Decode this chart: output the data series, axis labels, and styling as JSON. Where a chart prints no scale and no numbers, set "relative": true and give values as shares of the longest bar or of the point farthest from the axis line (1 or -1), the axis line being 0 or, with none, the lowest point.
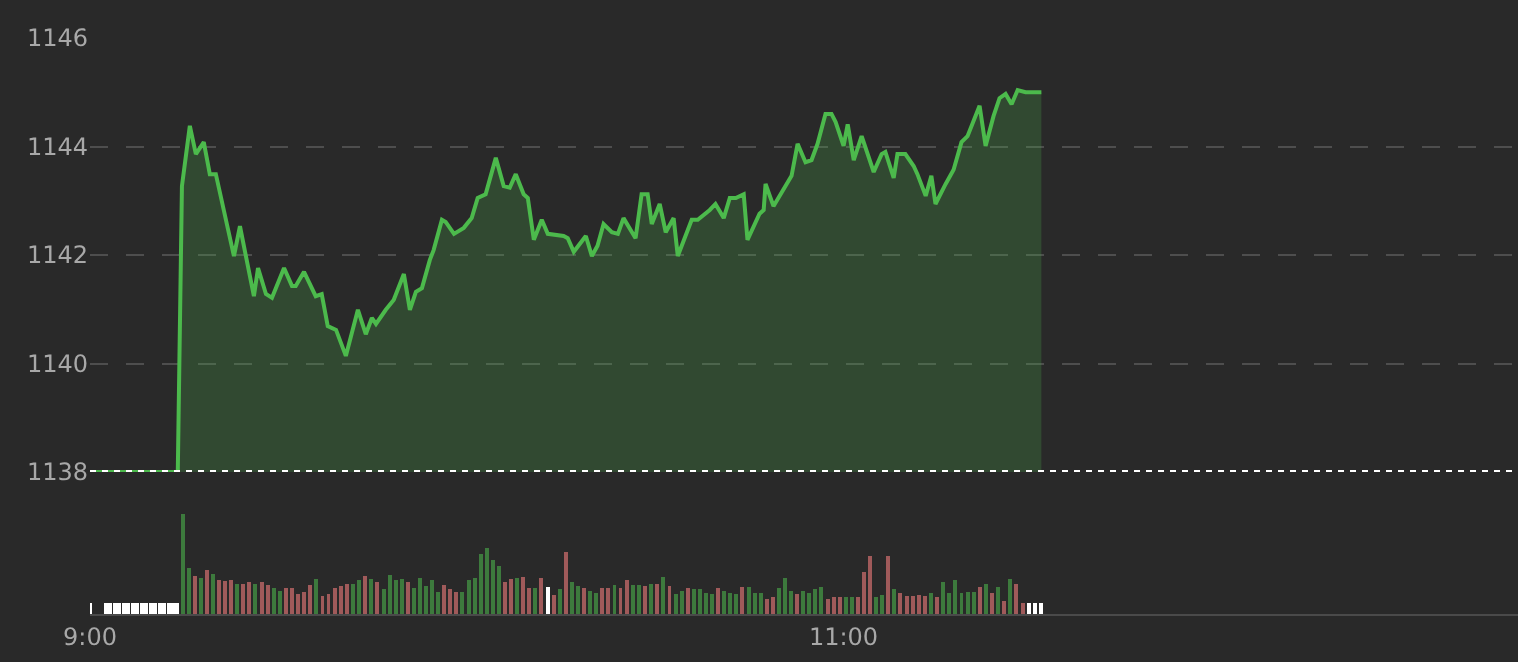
{
  "chart_data": [
    {
      "type": "area",
      "color": "#4cba4c",
      "xlim": [
        9.0,
        12.79
      ],
      "ylim": [
        1138,
        1146
      ],
      "yticks": [
        1138,
        1140,
        1142,
        1144,
        1146
      ],
      "grid": "y",
      "tick_labels": "y",
      "ref_lines": [
        {
          "axis": "y",
          "value": 1138,
          "color": "#ffffff",
          "line_style": "dotted"
        }
      ],
      "x": [
        9.0,
        9.233,
        9.244,
        9.265,
        9.281,
        9.302,
        9.318,
        9.334,
        9.382,
        9.398,
        9.435,
        9.446,
        9.467,
        9.483,
        9.515,
        9.536,
        9.546,
        9.568,
        9.599,
        9.615,
        9.631,
        9.653,
        9.679,
        9.711,
        9.732,
        9.748,
        9.759,
        9.785,
        9.806,
        9.833,
        9.849,
        9.865,
        9.881,
        9.902,
        9.912,
        9.934,
        9.944,
        9.966,
        9.992,
        10.013,
        10.029,
        10.05,
        10.077,
        10.098,
        10.114,
        10.13,
        10.151,
        10.162,
        10.178,
        10.199,
        10.215,
        10.257,
        10.268,
        10.284,
        10.316,
        10.332,
        10.347,
        10.363,
        10.385,
        10.401,
        10.416,
        10.448,
        10.464,
        10.48,
        10.491,
        10.512,
        10.528,
        10.549,
        10.56,
        10.597,
        10.613,
        10.645,
        10.66,
        10.682,
        10.698,
        10.714,
        10.735,
        10.745,
        10.777,
        10.788,
        10.793,
        10.814,
        10.862,
        10.878,
        10.899,
        10.915,
        10.931,
        10.952,
        10.968,
        10.979,
        11.0,
        11.011,
        11.027,
        11.048,
        11.08,
        11.101,
        11.111,
        11.133,
        11.143,
        11.164,
        11.186,
        11.196,
        11.218,
        11.233,
        11.244,
        11.271,
        11.292,
        11.313,
        11.329,
        11.361,
        11.377,
        11.398,
        11.414,
        11.43,
        11.446,
        11.462,
        11.483,
        11.525
      ],
      "values": [
        1138.0,
        1138.0,
        1143.27,
        1144.38,
        1143.86,
        1144.08,
        1143.49,
        1143.49,
        1141.98,
        1142.53,
        1141.24,
        1141.76,
        1141.28,
        1141.21,
        1141.76,
        1141.43,
        1141.43,
        1141.69,
        1141.24,
        1141.28,
        1140.69,
        1140.62,
        1140.14,
        1140.99,
        1140.54,
        1140.84,
        1140.73,
        1140.99,
        1141.17,
        1141.65,
        1140.99,
        1141.32,
        1141.39,
        1141.91,
        1142.09,
        1142.65,
        1142.61,
        1142.39,
        1142.5,
        1142.68,
        1143.05,
        1143.12,
        1143.79,
        1143.27,
        1143.24,
        1143.49,
        1143.12,
        1143.05,
        1142.28,
        1142.65,
        1142.39,
        1142.35,
        1142.31,
        1142.06,
        1142.35,
        1141.98,
        1142.17,
        1142.57,
        1142.42,
        1142.39,
        1142.68,
        1142.31,
        1143.12,
        1143.12,
        1142.57,
        1142.94,
        1142.42,
        1142.68,
        1141.98,
        1142.65,
        1142.65,
        1142.83,
        1142.94,
        1142.68,
        1143.05,
        1143.05,
        1143.12,
        1142.28,
        1142.76,
        1142.83,
        1143.31,
        1142.9,
        1143.46,
        1144.05,
        1143.71,
        1143.75,
        1144.05,
        1144.6,
        1144.6,
        1144.45,
        1144.01,
        1144.41,
        1143.75,
        1144.19,
        1143.53,
        1143.86,
        1143.9,
        1143.42,
        1143.86,
        1143.86,
        1143.64,
        1143.49,
        1143.09,
        1143.46,
        1142.94,
        1143.31,
        1143.57,
        1144.08,
        1144.19,
        1144.75,
        1144.01,
        1144.56,
        1144.89,
        1144.97,
        1144.78,
        1145.04,
        1145.0,
        1145.0
      ]
    },
    {
      "type": "bar",
      "relative": true,
      "xlim": [
        9.0,
        12.79
      ],
      "xticks": [
        {
          "value": 9,
          "label": "9:00"
        },
        {
          "value": 11,
          "label": "11:00"
        }
      ],
      "tick_labels": "x",
      "x": [
        9.0,
        9.042,
        9.054,
        9.066,
        9.078,
        9.09,
        9.102,
        9.114,
        9.125,
        9.137,
        9.149,
        9.161,
        9.173,
        9.185,
        9.197,
        9.209,
        9.221,
        9.232,
        9.246,
        9.262,
        9.278,
        9.294,
        9.31,
        9.326,
        9.343,
        9.359,
        9.375,
        9.391,
        9.407,
        9.423,
        9.439,
        9.456,
        9.472,
        9.488,
        9.504,
        9.52,
        9.536,
        9.552,
        9.569,
        9.585,
        9.601,
        9.617,
        9.633,
        9.649,
        9.665,
        9.682,
        9.698,
        9.714,
        9.73,
        9.746,
        9.762,
        9.779,
        9.795,
        9.811,
        9.827,
        9.843,
        9.859,
        9.875,
        9.892,
        9.908,
        9.924,
        9.94,
        9.956,
        9.972,
        9.988,
        10.005,
        10.021,
        10.037,
        10.053,
        10.069,
        10.085,
        10.101,
        10.118,
        10.134,
        10.15,
        10.166,
        10.182,
        10.198,
        10.215,
        10.231,
        10.247,
        10.263,
        10.279,
        10.295,
        10.311,
        10.328,
        10.344,
        10.36,
        10.376,
        10.392,
        10.408,
        10.425,
        10.441,
        10.457,
        10.473,
        10.489,
        10.505,
        10.521,
        10.538,
        10.554,
        10.57,
        10.586,
        10.602,
        10.618,
        10.635,
        10.651,
        10.667,
        10.683,
        10.699,
        10.715,
        10.731,
        10.748,
        10.764,
        10.78,
        10.796,
        10.812,
        10.828,
        10.845,
        10.861,
        10.877,
        10.893,
        10.909,
        10.925,
        10.941,
        10.958,
        10.974,
        10.99,
        11.006,
        11.022,
        11.038,
        11.055,
        11.071,
        11.087,
        11.103,
        11.119,
        11.135,
        11.151,
        11.168,
        11.184,
        11.2,
        11.216,
        11.232,
        11.248,
        11.265,
        11.281,
        11.297,
        11.313,
        11.329,
        11.345,
        11.361,
        11.378,
        11.394,
        11.41,
        11.426,
        11.442,
        11.458,
        11.475,
        11.491,
        11.507,
        11.523
      ],
      "values": [
        0.11,
        0.11,
        0.11,
        0.11,
        0.11,
        0.11,
        0.11,
        0.11,
        0.11,
        0.11,
        0.11,
        0.11,
        0.11,
        0.11,
        0.11,
        0.11,
        0.11,
        0.11,
        1.0,
        0.46,
        0.38,
        0.36,
        0.44,
        0.4,
        0.34,
        0.33,
        0.34,
        0.3,
        0.3,
        0.32,
        0.3,
        0.32,
        0.29,
        0.26,
        0.23,
        0.26,
        0.26,
        0.2,
        0.22,
        0.29,
        0.35,
        0.18,
        0.2,
        0.26,
        0.28,
        0.3,
        0.3,
        0.34,
        0.38,
        0.35,
        0.32,
        0.25,
        0.39,
        0.34,
        0.35,
        0.32,
        0.26,
        0.36,
        0.28,
        0.34,
        0.22,
        0.29,
        0.25,
        0.22,
        0.22,
        0.34,
        0.36,
        0.6,
        0.66,
        0.54,
        0.48,
        0.32,
        0.35,
        0.36,
        0.37,
        0.26,
        0.26,
        0.36,
        0.27,
        0.19,
        0.25,
        0.62,
        0.32,
        0.28,
        0.26,
        0.23,
        0.21,
        0.26,
        0.26,
        0.29,
        0.26,
        0.34,
        0.29,
        0.29,
        0.28,
        0.3,
        0.3,
        0.37,
        0.28,
        0.2,
        0.23,
        0.26,
        0.25,
        0.25,
        0.21,
        0.2,
        0.26,
        0.23,
        0.21,
        0.2,
        0.27,
        0.27,
        0.21,
        0.21,
        0.15,
        0.17,
        0.26,
        0.36,
        0.23,
        0.2,
        0.23,
        0.21,
        0.25,
        0.27,
        0.15,
        0.17,
        0.17,
        0.17,
        0.17,
        0.17,
        0.42,
        0.58,
        0.17,
        0.19,
        0.58,
        0.25,
        0.21,
        0.18,
        0.18,
        0.19,
        0.18,
        0.21,
        0.17,
        0.32,
        0.21,
        0.34,
        0.21,
        0.22,
        0.22,
        0.27,
        0.3,
        0.21,
        0.27,
        0.13,
        0.35,
        0.3,
        0.11,
        0.11,
        0.11,
        0.11
      ],
      "colors": [
        "#ffffff",
        "#ffffff",
        "#ffffff",
        "#ffffff",
        "#ffffff",
        "#ffffff",
        "#ffffff",
        "#ffffff",
        "#ffffff",
        "#ffffff",
        "#ffffff",
        "#ffffff",
        "#ffffff",
        "#ffffff",
        "#ffffff",
        "#ffffff",
        "#ffffff",
        "#ffffff",
        "#3d7a3d",
        "#3d7a3d",
        "#a05a5a",
        "#3d7a3d",
        "#a05a5a",
        "#3d7a3d",
        "#a05a5a",
        "#a05a5a",
        "#a05a5a",
        "#3d7a3d",
        "#a05a5a",
        "#a05a5a",
        "#3d7a3d",
        "#a05a5a",
        "#a05a5a",
        "#3d7a3d",
        "#3d7a3d",
        "#a05a5a",
        "#a05a5a",
        "#a05a5a",
        "#a05a5a",
        "#a05a5a",
        "#3d7a3d",
        "#a05a5a",
        "#a05a5a",
        "#a05a5a",
        "#a05a5a",
        "#a05a5a",
        "#3d7a3d",
        "#3d7a3d",
        "#a05a5a",
        "#3d7a3d",
        "#a05a5a",
        "#3d7a3d",
        "#3d7a3d",
        "#3d7a3d",
        "#3d7a3d",
        "#a05a5a",
        "#3d7a3d",
        "#3d7a3d",
        "#3d7a3d",
        "#3d7a3d",
        "#3d7a3d",
        "#a05a5a",
        "#a05a5a",
        "#a05a5a",
        "#3d7a3d",
        "#3d7a3d",
        "#3d7a3d",
        "#3d7a3d",
        "#3d7a3d",
        "#3d7a3d",
        "#3d7a3d",
        "#a05a5a",
        "#a05a5a",
        "#3d7a3d",
        "#a05a5a",
        "#a05a5a",
        "#3d7a3d",
        "#a05a5a",
        "#ffffff",
        "#a05a5a",
        "#3d7a3d",
        "#a05a5a",
        "#3d7a3d",
        "#3d7a3d",
        "#a05a5a",
        "#3d7a3d",
        "#3d7a3d",
        "#a05a5a",
        "#a05a5a",
        "#3d7a3d",
        "#a05a5a",
        "#a05a5a",
        "#3d7a3d",
        "#3d7a3d",
        "#a05a5a",
        "#3d7a3d",
        "#a05a5a",
        "#3d7a3d",
        "#a05a5a",
        "#3d7a3d",
        "#3d7a3d",
        "#a05a5a",
        "#3d7a3d",
        "#3d7a3d",
        "#3d7a3d",
        "#3d7a3d",
        "#a05a5a",
        "#3d7a3d",
        "#3d7a3d",
        "#3d7a3d",
        "#a05a5a",
        "#3d7a3d",
        "#3d7a3d",
        "#3d7a3d",
        "#a05a5a",
        "#a05a5a",
        "#3d7a3d",
        "#3d7a3d",
        "#3d7a3d",
        "#a05a5a",
        "#3d7a3d",
        "#3d7a3d",
        "#3d7a3d",
        "#3d7a3d",
        "#a05a5a",
        "#a05a5a",
        "#a05a5a",
        "#3d7a3d",
        "#3d7a3d",
        "#a05a5a",
        "#a05a5a",
        "#a05a5a",
        "#3d7a3d",
        "#3d7a3d",
        "#a05a5a",
        "#3d7a3d",
        "#a05a5a",
        "#a05a5a",
        "#a05a5a",
        "#a05a5a",
        "#a05a5a",
        "#3d7a3d",
        "#a05a5a",
        "#3d7a3d",
        "#3d7a3d",
        "#3d7a3d",
        "#3d7a3d",
        "#3d7a3d",
        "#3d7a3d",
        "#a05a5a",
        "#3d7a3d",
        "#a05a5a",
        "#3d7a3d",
        "#a05a5a",
        "#3d7a3d",
        "#a05a5a",
        "#a05a5a",
        "#ffffff",
        "#ffffff",
        "#ffffff"
      ]
    }
  ]
}
